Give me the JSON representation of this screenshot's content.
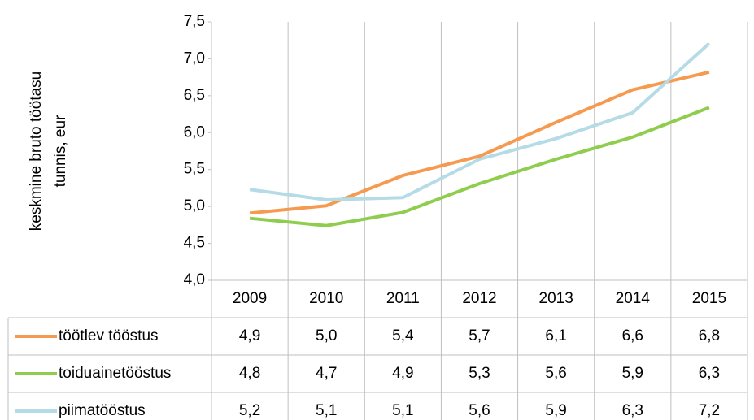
{
  "chart_data": {
    "type": "line",
    "y_label": [
      "keskmine bruto töötasu",
      "tunnis, eur"
    ],
    "categories": [
      "2009",
      "2010",
      "2011",
      "2012",
      "2013",
      "2014",
      "2015"
    ],
    "series": [
      {
        "name": "töötlev tööstus",
        "color": "#f59a4f",
        "values": [
          4.91,
          5.01,
          5.42,
          5.68,
          6.14,
          6.58,
          6.82
        ],
        "value_labels": [
          "4,9",
          "5,0",
          "5,4",
          "5,7",
          "6,1",
          "6,6",
          "6,8"
        ]
      },
      {
        "name": "toiduainetööstus",
        "color": "#8fcd4e",
        "values": [
          4.84,
          4.74,
          4.92,
          5.31,
          5.64,
          5.94,
          6.34
        ],
        "value_labels": [
          "4,8",
          "4,7",
          "4,9",
          "5,3",
          "5,6",
          "5,9",
          "6,3"
        ]
      },
      {
        "name": "piimatööstus",
        "color": "#b4dbe6",
        "values": [
          5.23,
          5.09,
          5.12,
          5.64,
          5.92,
          6.27,
          7.21
        ],
        "value_labels": [
          "5,2",
          "5,1",
          "5,1",
          "5,6",
          "5,9",
          "6,3",
          "7,2"
        ]
      }
    ],
    "ylim": [
      4.0,
      7.5
    ],
    "yticks": [
      {
        "value": 4.0,
        "label": "4,0"
      },
      {
        "value": 4.5,
        "label": "4,5"
      },
      {
        "value": 5.0,
        "label": "5,0"
      },
      {
        "value": 5.5,
        "label": "5,5"
      },
      {
        "value": 6.0,
        "label": "6,0"
      },
      {
        "value": 6.5,
        "label": "6,5"
      },
      {
        "value": 7.0,
        "label": "7,0"
      },
      {
        "value": 7.5,
        "label": "7,5"
      }
    ],
    "grid": "x",
    "data_table": true
  }
}
